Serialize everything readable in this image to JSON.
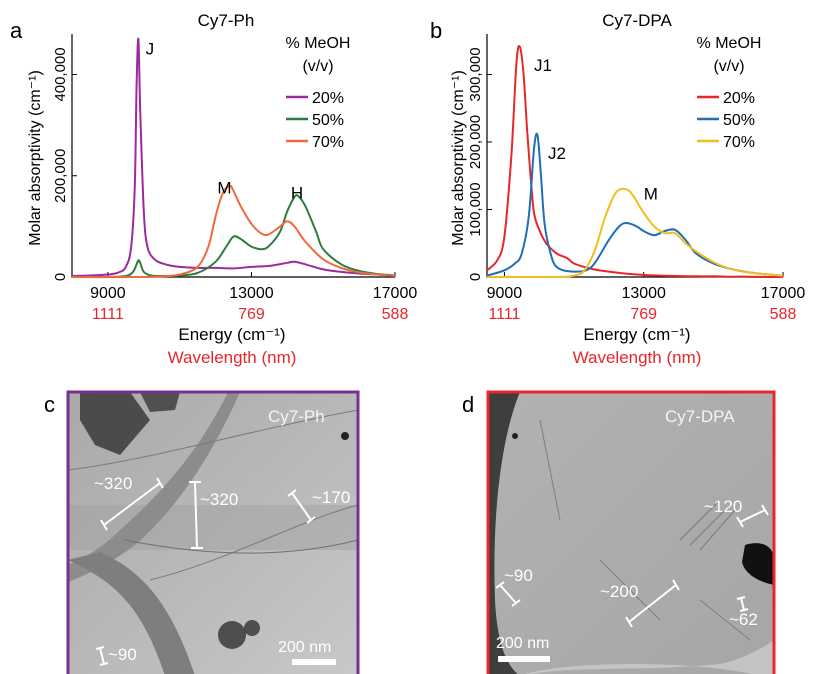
{
  "panels": {
    "a": {
      "letter": "a",
      "title": "Cy7-Ph"
    },
    "b": {
      "letter": "b",
      "title": "Cy7-DPA"
    },
    "c": {
      "letter": "c",
      "label": "Cy7-Ph",
      "scalebar": "200 nm",
      "border_color": "#7b2f8e",
      "annotations": [
        "~320",
        "~320",
        "~170",
        "~90"
      ]
    },
    "d": {
      "letter": "d",
      "label": "Cy7-DPA",
      "scalebar": "200 nm",
      "border_color": "#e8262b",
      "annotations": [
        "~120",
        "~90",
        "~200",
        "~62"
      ]
    }
  },
  "chart_data": [
    {
      "type": "line",
      "panel": "a",
      "title": "Cy7-Ph",
      "xlabel": "Energy (cm⁻¹)",
      "xlabel2": "Wavelength (nm)",
      "ylabel": "Molar absorptivity (cm⁻¹)",
      "xlim": [
        8000,
        17000
      ],
      "ylim": [
        0,
        480000
      ],
      "xticks": [
        9000,
        13000,
        17000
      ],
      "xticklabels": [
        "9000",
        "13000",
        "17000"
      ],
      "xticks2": [
        9000,
        13000,
        17000
      ],
      "xticklabels2": [
        "1111",
        "769",
        "588"
      ],
      "yticks": [
        0,
        200000,
        400000
      ],
      "yticklabels": [
        "0",
        "200,000",
        "400,000"
      ],
      "legend_title": [
        "% MeOH",
        "(v/v)"
      ],
      "legend_placement": "top-right",
      "annotations": [
        {
          "text": "J",
          "x": 10050,
          "y": 440000
        },
        {
          "text": "M",
          "x": 12050,
          "y": 165000
        },
        {
          "text": "H",
          "x": 14100,
          "y": 155000
        }
      ],
      "series": [
        {
          "name": "20%",
          "color": "#9b2a9e",
          "x": [
            8000,
            8500,
            9000,
            9300,
            9500,
            9650,
            9750,
            9800,
            9850,
            9900,
            10000,
            10100,
            10300,
            10600,
            11000,
            11500,
            12000,
            12500,
            13000,
            13500,
            14000,
            14200,
            14500,
            15000,
            15500,
            16000,
            16500,
            17000
          ],
          "y": [
            2000,
            3000,
            5000,
            9000,
            20000,
            60000,
            180000,
            380000,
            470000,
            330000,
            130000,
            60000,
            35000,
            25000,
            20000,
            18000,
            18000,
            17000,
            20000,
            22000,
            28000,
            30000,
            25000,
            15000,
            10000,
            7000,
            5000,
            3000
          ]
        },
        {
          "name": "50%",
          "color": "#2e7d3c",
          "x": [
            8000,
            9000,
            9500,
            9700,
            9800,
            9850,
            9900,
            10000,
            10200,
            10500,
            11000,
            11500,
            12000,
            12300,
            12500,
            12700,
            13000,
            13300,
            13500,
            13800,
            14000,
            14200,
            14300,
            14500,
            14800,
            15000,
            15500,
            16000,
            16500,
            17000
          ],
          "y": [
            0,
            0,
            2000,
            10000,
            25000,
            33000,
            28000,
            10000,
            3000,
            2000,
            3000,
            8000,
            30000,
            60000,
            80000,
            75000,
            60000,
            55000,
            62000,
            90000,
            130000,
            158000,
            160000,
            140000,
            90000,
            55000,
            25000,
            12000,
            6000,
            3000
          ]
        },
        {
          "name": "70%",
          "color": "#ee6a3c",
          "x": [
            8000,
            9000,
            10000,
            10500,
            11000,
            11500,
            11800,
            12000,
            12200,
            12400,
            12500,
            12700,
            13000,
            13300,
            13500,
            13800,
            14000,
            14200,
            14500,
            15000,
            15500,
            16000,
            16500,
            17000
          ],
          "y": [
            0,
            0,
            0,
            1000,
            5000,
            20000,
            60000,
            120000,
            165000,
            180000,
            170000,
            140000,
            105000,
            85000,
            85000,
            100000,
            110000,
            100000,
            70000,
            35000,
            18000,
            9000,
            5000,
            2000
          ]
        }
      ]
    },
    {
      "type": "line",
      "panel": "b",
      "title": "Cy7-DPA",
      "xlabel": "Energy (cm⁻¹)",
      "xlabel2": "Wavelength (nm)",
      "ylabel": "Molar absorptivity (cm⁻¹)",
      "xlim": [
        8500,
        17000
      ],
      "ylim": [
        0,
        360000
      ],
      "xticks": [
        9000,
        13000,
        17000
      ],
      "xticklabels": [
        "9000",
        "13000",
        "17000"
      ],
      "xticks2": [
        9000,
        13000,
        17000
      ],
      "xticklabels2": [
        "1111",
        "769",
        "588"
      ],
      "yticks": [
        0,
        100000,
        200000,
        300000
      ],
      "yticklabels": [
        "0",
        "100,000",
        "200,000",
        "300,000"
      ],
      "legend_title": [
        "% MeOH",
        "(v/v)"
      ],
      "legend_placement": "top-right",
      "annotations": [
        {
          "text": "J1",
          "x": 9850,
          "y": 305000
        },
        {
          "text": "J2",
          "x": 10250,
          "y": 175000
        },
        {
          "text": "M",
          "x": 13000,
          "y": 115000
        }
      ],
      "series": [
        {
          "name": "20%",
          "color": "#e8262b",
          "x": [
            8500,
            8800,
            9000,
            9200,
            9350,
            9450,
            9550,
            9650,
            9750,
            9850,
            10000,
            10200,
            10500,
            10800,
            11000,
            11500,
            12000,
            12500,
            13000,
            13500,
            14000,
            14500,
            15000,
            15500,
            16000,
            16500,
            17000
          ],
          "y": [
            10000,
            25000,
            60000,
            180000,
            320000,
            340000,
            300000,
            220000,
            150000,
            95000,
            70000,
            50000,
            35000,
            28000,
            20000,
            12000,
            8000,
            5000,
            3000,
            2000,
            1500,
            1000,
            1000,
            500,
            500,
            0,
            0
          ]
        },
        {
          "name": "50%",
          "color": "#1f6fb5",
          "x": [
            8500,
            9000,
            9300,
            9500,
            9700,
            9850,
            9950,
            10050,
            10150,
            10300,
            10500,
            11000,
            11500,
            12000,
            12300,
            12500,
            12800,
            13000,
            13300,
            13600,
            13900,
            14200,
            14500,
            15000,
            15500,
            16000,
            16500,
            17000
          ],
          "y": [
            2000,
            10000,
            20000,
            35000,
            90000,
            190000,
            210000,
            150000,
            80000,
            40000,
            15000,
            8000,
            15000,
            55000,
            75000,
            80000,
            75000,
            68000,
            62000,
            68000,
            70000,
            55000,
            35000,
            20000,
            12000,
            7000,
            4000,
            2000
          ]
        },
        {
          "name": "70%",
          "color": "#f2be1a",
          "x": [
            8500,
            9000,
            10000,
            10500,
            11000,
            11300,
            11600,
            11900,
            12200,
            12500,
            12700,
            13000,
            13300,
            13600,
            13900,
            14200,
            14500,
            15000,
            15500,
            16000,
            16500,
            17000
          ],
          "y": [
            0,
            0,
            0,
            0,
            2000,
            10000,
            40000,
            90000,
            125000,
            130000,
            120000,
            95000,
            75000,
            65000,
            65000,
            50000,
            38000,
            22000,
            12000,
            7000,
            4000,
            2000
          ]
        }
      ]
    }
  ]
}
